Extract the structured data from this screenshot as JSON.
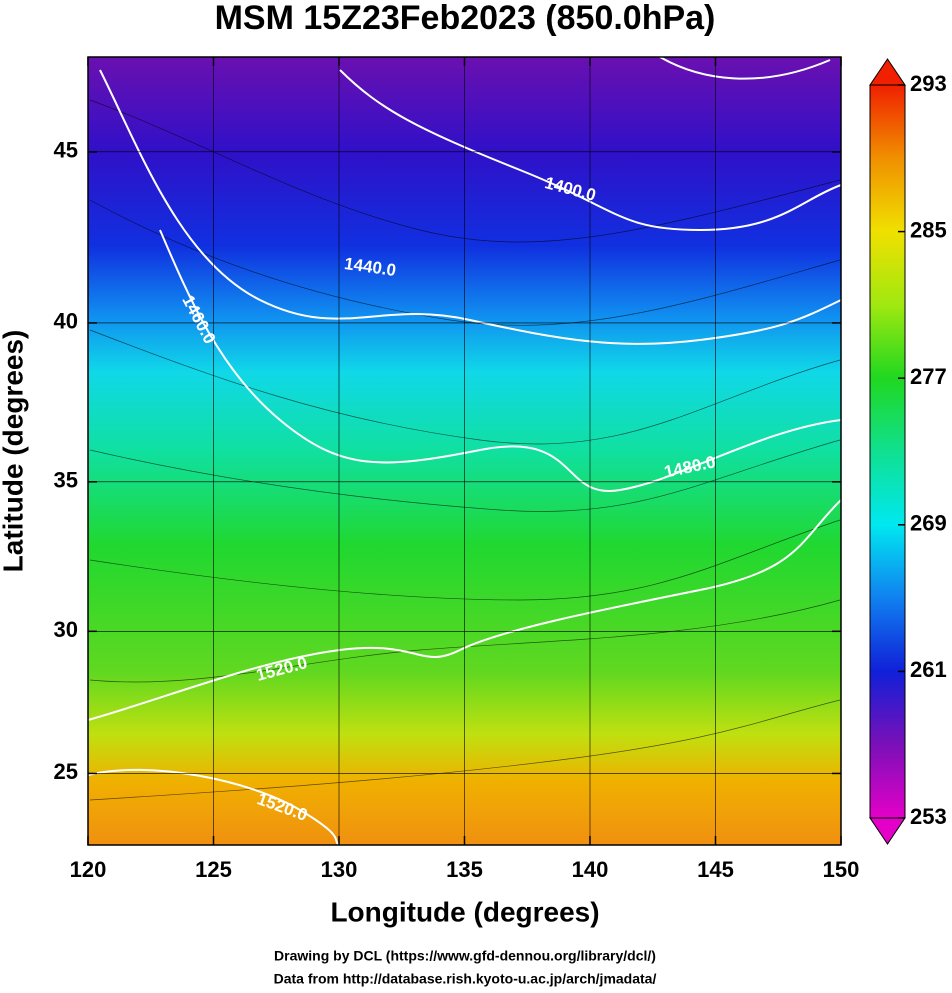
{
  "title": "MSM 15Z23Feb2023 (850.0hPa)",
  "x_axis": {
    "label": "Longitude (degrees)",
    "lim": [
      120,
      150
    ],
    "ticks": [
      120,
      125,
      130,
      135,
      140,
      145,
      150
    ]
  },
  "y_axis": {
    "label": "Latitude  (degrees)",
    "lim": [
      22.4,
      47.6
    ],
    "ticks": [
      25,
      30,
      35,
      40,
      45
    ],
    "projection": "mercator"
  },
  "grid": true,
  "colorbar": {
    "lim": [
      253,
      293
    ],
    "ticks": [
      253,
      261,
      269,
      277,
      285,
      293
    ],
    "colors": [
      "#e400c8",
      "#7a10b8",
      "#1020d8",
      "#1080f0",
      "#00e8f0",
      "#10e090",
      "#20d820",
      "#a0e810",
      "#f0e000",
      "#f09000",
      "#f02000"
    ]
  },
  "contour_labels": [
    "1400.0",
    "1440.0",
    "1460.0",
    "1480.0",
    "1520.0",
    "1520.0"
  ],
  "credits": [
    "Drawing by DCL (https://www.gfd-dennou.org/library/dcl/)",
    "Data from http://database.rish.kyoto-u.ac.jp/arch/jmadata/"
  ]
}
